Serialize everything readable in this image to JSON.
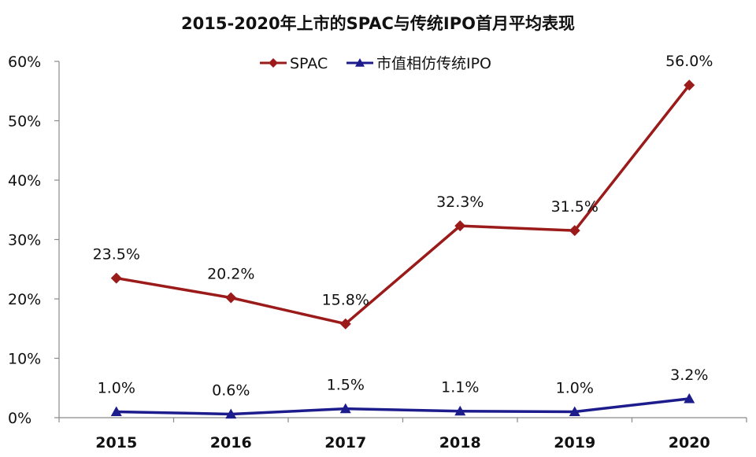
{
  "chart_data": {
    "type": "line",
    "title": "2015-2020年上市的SPAC与传统IPO首月平均表现",
    "categories": [
      "2015",
      "2016",
      "2017",
      "2018",
      "2019",
      "2020"
    ],
    "y_ticks": [
      "0%",
      "10%",
      "20%",
      "30%",
      "40%",
      "50%",
      "60%"
    ],
    "ylim": [
      0,
      60
    ],
    "grid": false,
    "legend_position": "top-center",
    "series": [
      {
        "name": "SPAC",
        "color": "#9b1a1a",
        "marker": "diamond",
        "values": [
          23.5,
          20.2,
          15.8,
          32.3,
          31.5,
          56.0
        ],
        "labels": [
          "23.5%",
          "20.2%",
          "15.8%",
          "32.3%",
          "31.5%",
          "56.0%"
        ]
      },
      {
        "name": "市值相仿传统IPO",
        "color": "#1c1c8c",
        "marker": "triangle",
        "values": [
          1.0,
          0.6,
          1.5,
          1.1,
          1.0,
          3.2
        ],
        "labels": [
          "1.0%",
          "0.6%",
          "1.5%",
          "1.1%",
          "1.0%",
          "3.2%"
        ]
      }
    ]
  }
}
